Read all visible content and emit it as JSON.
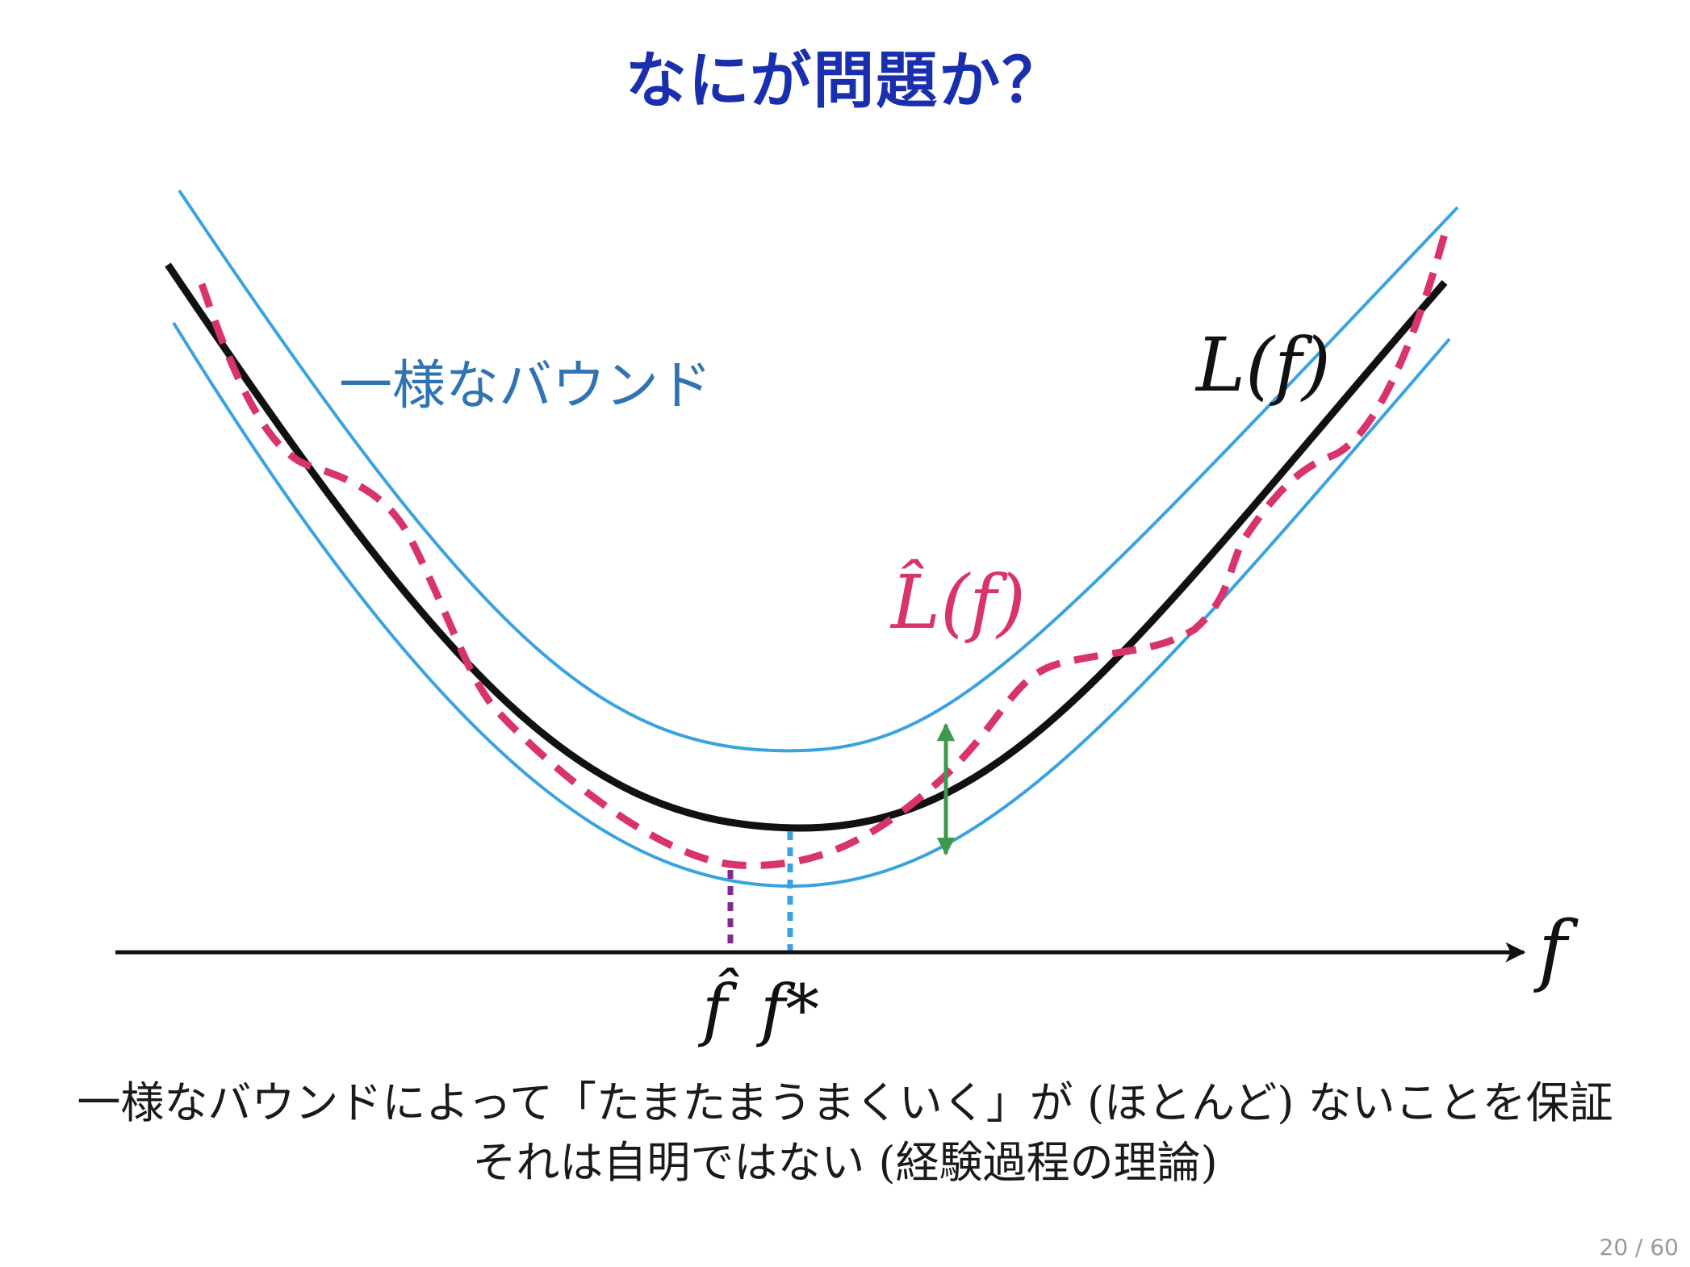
{
  "slide": {
    "title": "なにが問題か？",
    "caption_line1": "一様なバウンドによって「たまたまうまくいく」が (ほとんど) ないことを保証",
    "caption_line2": "それは自明ではない (経験過程の理論)",
    "page_number": "20 / 60"
  },
  "diagram": {
    "uniform_bound_label": "一様なバウンド",
    "true_risk_label": "L(f)",
    "empirical_risk_label": "L̂(f)",
    "axis_label": "f",
    "f_hat_label": "f̂",
    "f_star_label": "f*",
    "colors": {
      "title": "#1a2fae",
      "bound_curves": "#3aa3df",
      "bound_label": "#2f73b3",
      "true_risk": "#111111",
      "empirical_risk": "#d8336f",
      "double_arrow": "#3c9a4a",
      "f_hat_marker": "#7b2d8e",
      "f_star_marker": "#3aa3df",
      "axis": "#111111"
    }
  }
}
